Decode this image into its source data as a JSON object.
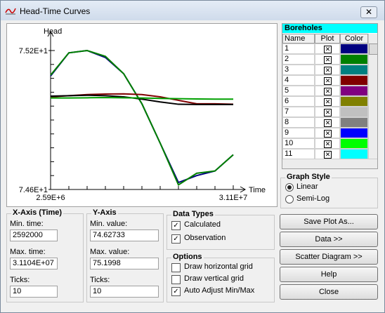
{
  "window": {
    "title": "Head-Time Curves"
  },
  "chart_data": {
    "type": "line",
    "y_label": "Head",
    "x_label": "Time",
    "x": [
      2592000,
      5443200,
      8294400,
      11145600,
      13996800,
      16848000,
      19699200,
      22550400,
      25401600,
      28252800,
      31104000
    ],
    "xlim": [
      2592000,
      31104000
    ],
    "xticks": [
      {
        "value": 2592000,
        "label": "2.59E+6"
      },
      {
        "value": 31104000,
        "label": "3.11E+7"
      }
    ],
    "ylim": [
      74.6,
      75.2
    ],
    "yticks": [
      {
        "value": 74.6,
        "label": "7.46E+1"
      },
      {
        "value": 75.2,
        "label": "7.52E+1"
      }
    ],
    "series": [
      {
        "color": "#000080",
        "values": [
          75.09,
          75.19,
          75.2,
          75.17,
          75.1,
          74.97,
          74.8,
          74.63,
          74.66,
          74.68,
          74.75
        ]
      },
      {
        "color": "#008000",
        "values": [
          75.094,
          75.19,
          75.2,
          75.175,
          75.1,
          74.97,
          74.8,
          74.62,
          74.67,
          74.68,
          74.75
        ]
      },
      {
        "color": "#800000",
        "values": [
          75.0,
          75.005,
          75.01,
          75.012,
          75.013,
          75.01,
          75.0,
          74.985,
          74.97,
          74.97,
          74.968
        ]
      },
      {
        "color": "#000000",
        "values": [
          75.003,
          75.005,
          75.007,
          75.005,
          75.0,
          74.99,
          74.978,
          74.968,
          74.967,
          74.967,
          74.967
        ]
      },
      {
        "color": "#00a000",
        "values": [
          74.995,
          74.995,
          74.996,
          74.997,
          74.996,
          74.995,
          74.993,
          74.992,
          74.991,
          74.99,
          74.99
        ]
      }
    ]
  },
  "boreholes": {
    "title": "Boreholes",
    "columns": [
      "Name",
      "Plot",
      "Color"
    ],
    "rows": [
      {
        "name": "1",
        "color": "#000080"
      },
      {
        "name": "2",
        "color": "#008000"
      },
      {
        "name": "3",
        "color": "#008080"
      },
      {
        "name": "4",
        "color": "#800000"
      },
      {
        "name": "5",
        "color": "#800080"
      },
      {
        "name": "6",
        "color": "#808000"
      },
      {
        "name": "7",
        "color": "#c0c0c0"
      },
      {
        "name": "8",
        "color": "#808080"
      },
      {
        "name": "9",
        "color": "#0000ff"
      },
      {
        "name": "10",
        "color": "#00ff00"
      },
      {
        "name": "11",
        "color": "#00ffff"
      }
    ]
  },
  "graph_style": {
    "title": "Graph Style",
    "options": [
      "Linear",
      "Semi-Log"
    ],
    "selected": 0
  },
  "x_axis": {
    "title": "X-Axis (Time)",
    "min_label": "Min. time:",
    "min": "2592000",
    "max_label": "Max. time:",
    "max": "3.1104E+07",
    "ticks_label": "Ticks:",
    "ticks": "10"
  },
  "y_axis": {
    "title": "Y-Axis",
    "min_label": "Min. value:",
    "min": "74.62733",
    "max_label": "Max. value:",
    "max": "75.1998",
    "ticks_label": "Ticks:",
    "ticks": "10"
  },
  "data_types": {
    "title": "Data Types",
    "items": [
      {
        "label": "Calculated",
        "checked": true
      },
      {
        "label": "Observation",
        "checked": true
      }
    ]
  },
  "options": {
    "title": "Options",
    "items": [
      {
        "label": "Draw horizontal grid",
        "checked": false
      },
      {
        "label": "Draw vertical grid",
        "checked": false
      },
      {
        "label": "Auto Adjust Min/Max",
        "checked": true
      }
    ]
  },
  "buttons": [
    "Save Plot As...",
    "Data >>",
    "Scatter Diagram >>",
    "Help",
    "Close"
  ]
}
